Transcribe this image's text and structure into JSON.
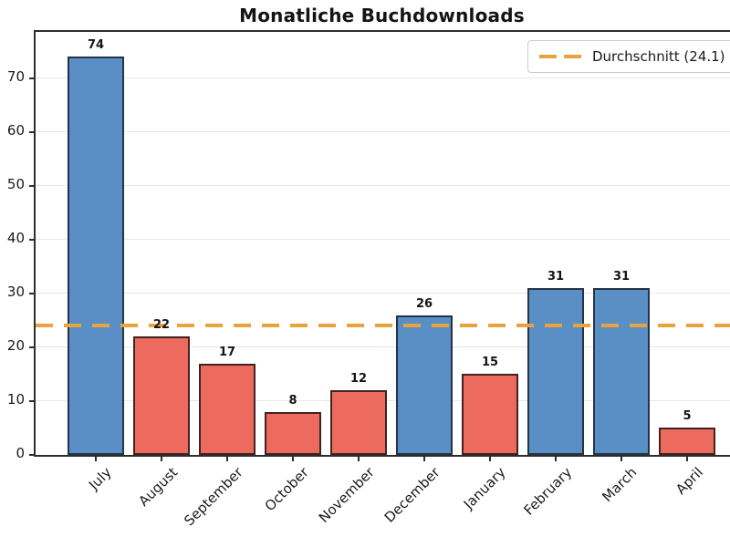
{
  "chart_data": {
    "type": "bar",
    "title": "Monatliche Buchdownloads",
    "categories": [
      "July",
      "August",
      "September",
      "October",
      "November",
      "December",
      "January",
      "February",
      "March",
      "April"
    ],
    "values": [
      74,
      22,
      17,
      8,
      12,
      26,
      15,
      31,
      31,
      5
    ],
    "value_labels": [
      "74",
      "22",
      "17",
      "8",
      "12",
      "26",
      "15",
      "31",
      "31",
      "5"
    ],
    "bar_fill_colors": [
      "#5a8fc6",
      "#ec6a5e",
      "#ec6a5e",
      "#ec6a5e",
      "#ec6a5e",
      "#5a8fc6",
      "#ec6a5e",
      "#5a8fc6",
      "#5a8fc6",
      "#ec6a5e"
    ],
    "bar_edge_colors": [
      "#243447",
      "#41231f",
      "#41231f",
      "#41231f",
      "#41231f",
      "#243447",
      "#41231f",
      "#243447",
      "#243447",
      "#41231f"
    ],
    "xlabel": "",
    "ylabel": "",
    "yticks": [
      0,
      10,
      20,
      30,
      40,
      50,
      60,
      70
    ],
    "ylim": [
      0,
      78.6
    ],
    "grid": "horizontal",
    "gridline_color": "#e7e7e7",
    "average_line": {
      "value": 24.1,
      "style": "dashed",
      "color": "#e8a33d",
      "label": "Durchschnitt (24.1)"
    },
    "legend": {
      "position": "upper-right",
      "entries": [
        {
          "label": "Durchschnitt (24.1)",
          "color": "#e8a33d",
          "line_style": "dashed"
        }
      ]
    }
  },
  "colors": {
    "background": "#ffffff",
    "axis": "#2d2d2d",
    "text": "#1a1a1a",
    "blue_bar": "#5a8fc6",
    "red_bar": "#ec6a5e",
    "average_line": "#e8a33d",
    "gridline": "#e7e7e7"
  }
}
